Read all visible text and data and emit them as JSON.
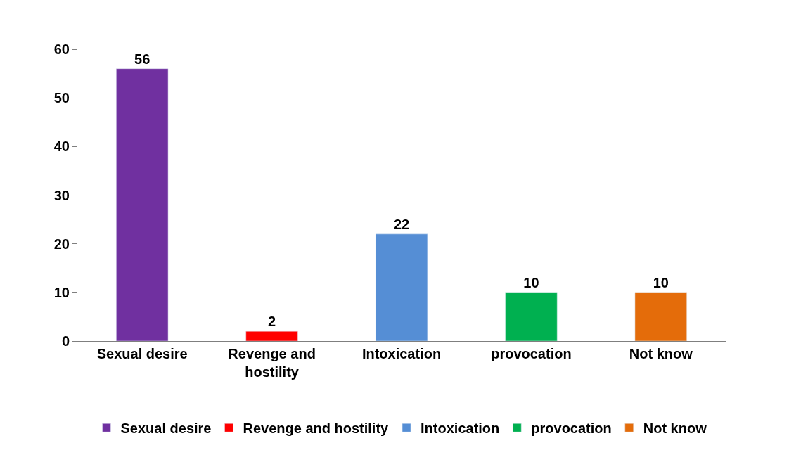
{
  "chart_data": {
    "type": "bar",
    "categories": [
      "Sexual desire",
      "Revenge and hostility",
      "Intoxication",
      "provocation",
      "Not know"
    ],
    "series": [
      {
        "name": "Sexual desire",
        "color": "#7030a0",
        "values": [
          56,
          null,
          null,
          null,
          null
        ]
      },
      {
        "name": "Revenge and hostility",
        "color": "#ff0000",
        "values": [
          null,
          2,
          null,
          null,
          null
        ]
      },
      {
        "name": "Intoxication",
        "color": "#558ed5",
        "values": [
          null,
          null,
          22,
          null,
          null
        ]
      },
      {
        "name": "provocation",
        "color": "#00b050",
        "values": [
          null,
          null,
          null,
          10,
          null
        ]
      },
      {
        "name": "Not know",
        "color": "#e46c0a",
        "values": [
          null,
          null,
          null,
          null,
          10
        ]
      }
    ],
    "ylim": [
      0,
      60
    ],
    "yticks": [
      0,
      10,
      20,
      30,
      40,
      50,
      60
    ],
    "data_labels": true,
    "legend": "bottom"
  }
}
